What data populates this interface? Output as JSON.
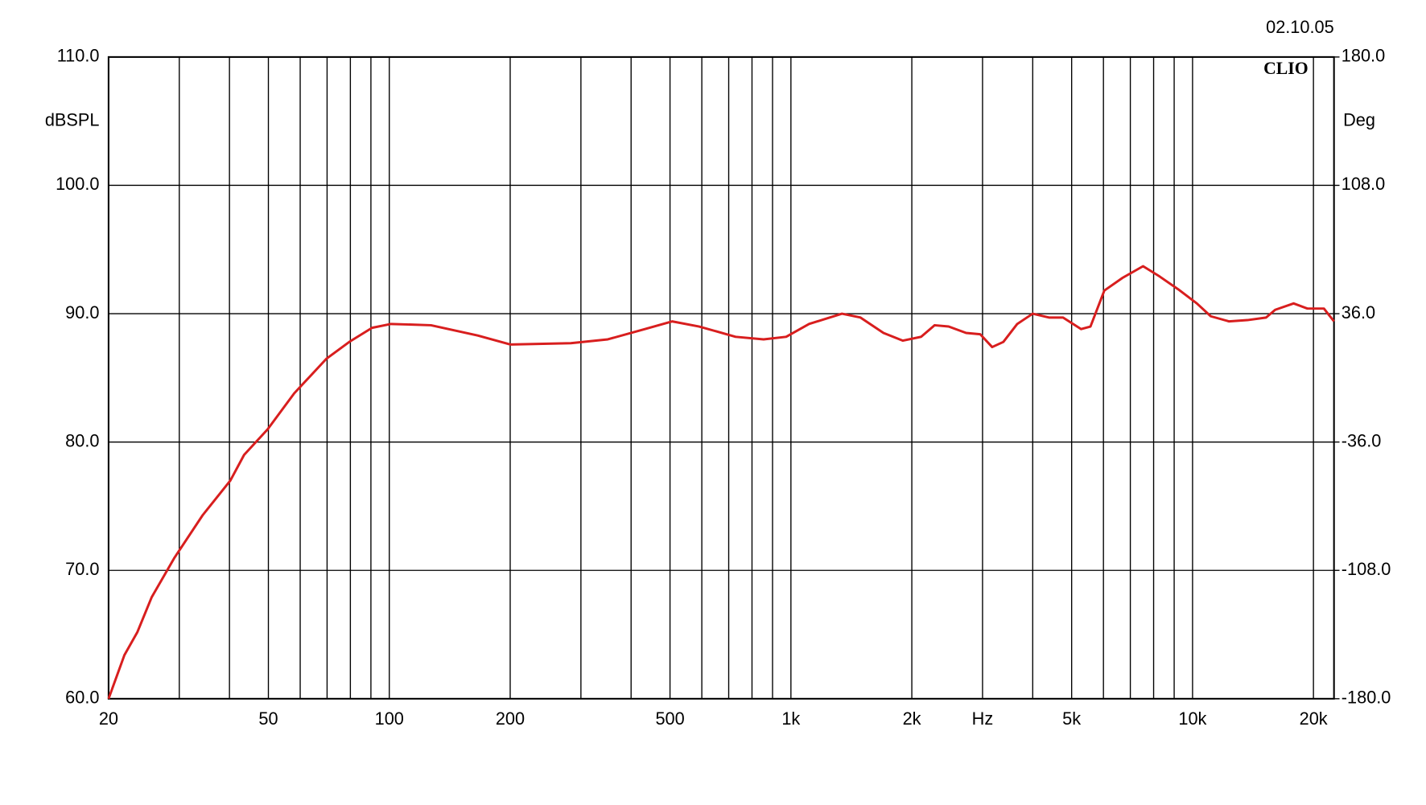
{
  "chart_data": {
    "type": "line",
    "date": "02.10.05",
    "brand": "CLIO",
    "y_label": "dBSPL",
    "y2_label": "Deg",
    "xscale": "log",
    "xlim": [
      20,
      22500
    ],
    "xticks": [
      {
        "value": 20,
        "label": "20"
      },
      {
        "value": 50,
        "label": "50"
      },
      {
        "value": 100,
        "label": "100"
      },
      {
        "value": 200,
        "label": "200"
      },
      {
        "value": 500,
        "label": "500"
      },
      {
        "value": 1000,
        "label": "1k"
      },
      {
        "value": 2000,
        "label": "2k"
      },
      {
        "value": 3000,
        "label": "Hz"
      },
      {
        "value": 5000,
        "label": "5k"
      },
      {
        "value": 10000,
        "label": "10k"
      },
      {
        "value": 20000,
        "label": "20k"
      }
    ],
    "x_minor_gridlines": [
      30,
      40,
      60,
      70,
      80,
      90,
      300,
      400,
      600,
      700,
      800,
      900,
      4000,
      6000,
      7000,
      8000,
      9000
    ],
    "ylim": [
      60,
      110
    ],
    "yticks": [
      {
        "value": 60,
        "label": "60.0"
      },
      {
        "value": 70,
        "label": "70.0"
      },
      {
        "value": 80,
        "label": "80.0"
      },
      {
        "value": 90,
        "label": "90.0"
      },
      {
        "value": 100,
        "label": "100.0"
      },
      {
        "value": 110,
        "label": "110.0"
      }
    ],
    "y2lim": [
      -180,
      180
    ],
    "y2ticks": [
      {
        "value": -180,
        "label": "-180.0"
      },
      {
        "value": -108,
        "label": "-108.0"
      },
      {
        "value": -36,
        "label": "-36.0"
      },
      {
        "value": 36,
        "label": "36.0"
      },
      {
        "value": 108,
        "label": "108.0"
      },
      {
        "value": 180,
        "label": "180.0"
      }
    ],
    "grid": true,
    "series": [
      {
        "color": "#d81e1e",
        "x": [
          20,
          21.9,
          23.6,
          25.6,
          29.2,
          34.3,
          40.2,
          43.5,
          49.8,
          58,
          69.8,
          79.5,
          90.6,
          101,
          127,
          166,
          200,
          283,
          350,
          433,
          506,
          591,
          728,
          855,
          973,
          1110,
          1340,
          1490,
          1700,
          1900,
          2110,
          2280,
          2470,
          2730,
          2960,
          3170,
          3380,
          3660,
          4000,
          4390,
          4760,
          5280,
          5570,
          6030,
          6700,
          7530,
          8280,
          9210,
          10250,
          11100,
          12330,
          13700,
          15240,
          16060,
          17850,
          19320,
          21240,
          22500
        ],
        "values": [
          60,
          63.4,
          65.2,
          67.9,
          71.0,
          74.3,
          77.0,
          79.0,
          81.0,
          83.8,
          86.5,
          87.8,
          88.9,
          89.2,
          89.1,
          88.3,
          87.6,
          87.7,
          88.0,
          88.8,
          89.4,
          89.0,
          88.2,
          88.0,
          88.2,
          89.2,
          90.0,
          89.7,
          88.5,
          87.9,
          88.2,
          89.1,
          89.0,
          88.5,
          88.4,
          87.4,
          87.8,
          89.2,
          90.0,
          89.7,
          89.7,
          88.8,
          89.0,
          91.8,
          92.8,
          93.7,
          92.9,
          91.9,
          90.8,
          89.8,
          89.4,
          89.5,
          89.7,
          90.3,
          90.8,
          90.4,
          90.4,
          89.4
        ]
      }
    ]
  }
}
